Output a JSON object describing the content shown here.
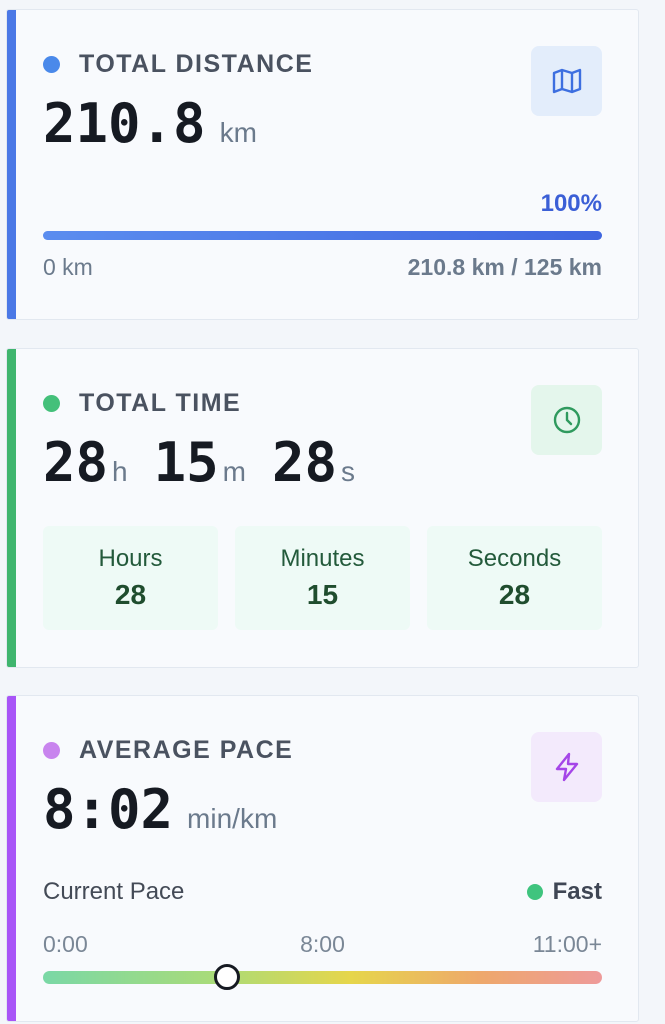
{
  "distance": {
    "label": "TOTAL DISTANCE",
    "value": "210.8",
    "unit": "km",
    "progress_pct_label": "100%",
    "progress_fraction": 1.0,
    "min_label": "0 km",
    "max_label": "210.8 km / 125 km",
    "accent_color": "#4a78e6",
    "dot_color": "#4a89ea",
    "icon": "map-icon"
  },
  "time": {
    "label": "TOTAL TIME",
    "hours": "28",
    "hours_unit": "h",
    "minutes": "15",
    "minutes_unit": "m",
    "seconds": "28",
    "seconds_unit": "s",
    "breakdown": [
      {
        "label": "Hours",
        "value": "28"
      },
      {
        "label": "Minutes",
        "value": "15"
      },
      {
        "label": "Seconds",
        "value": "28"
      }
    ],
    "accent_color": "#3fb56e",
    "dot_color": "#44c07a",
    "icon": "clock-icon"
  },
  "pace": {
    "label": "AVERAGE PACE",
    "value": "8:02",
    "unit": "min/km",
    "current_label": "Current Pace",
    "status": "Fast",
    "status_color": "#3fc47e",
    "scale": [
      "0:00",
      "8:00",
      "11:00+"
    ],
    "marker_fraction": 0.33,
    "accent_color": "#a855f7",
    "dot_color": "#c884ee",
    "icon": "lightning-icon"
  }
}
